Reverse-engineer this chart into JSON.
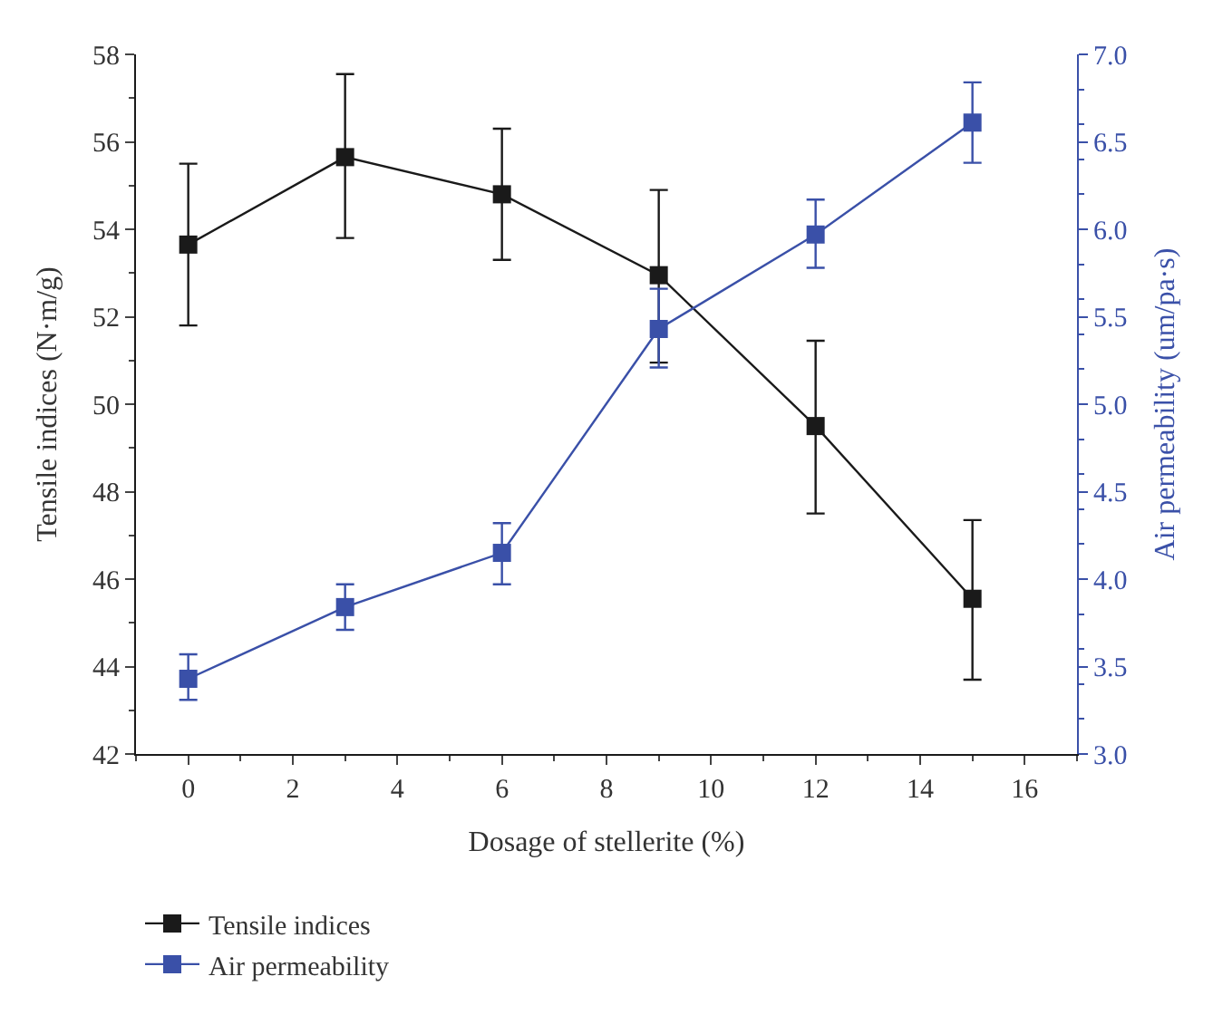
{
  "chart_data": {
    "type": "line",
    "xlabel": "Dosage of stellerite (%)",
    "ylabel": "Tensile indices (N·m/g)",
    "y2label": "Air permeability (um/pa·s)",
    "x": [
      0,
      3,
      6,
      9,
      12,
      15
    ],
    "series": [
      {
        "name": "Tensile indices",
        "color": "#1a1a1a",
        "values": [
          53.65,
          55.65,
          54.8,
          52.95,
          49.5,
          45.55
        ],
        "errors": [
          [
            51.8,
            55.5
          ],
          [
            53.8,
            57.55
          ],
          [
            53.3,
            56.3
          ],
          [
            50.95,
            54.9
          ],
          [
            47.5,
            51.45
          ],
          [
            43.7,
            47.35
          ]
        ]
      },
      {
        "name": "Air permeability",
        "color": "#3a50a8",
        "axis": "y2",
        "values": [
          3.43,
          3.84,
          4.15,
          5.43,
          5.97,
          6.61
        ],
        "errors": [
          [
            3.31,
            3.57
          ],
          [
            3.71,
            3.97
          ],
          [
            3.97,
            4.32
          ],
          [
            5.21,
            5.66
          ],
          [
            5.78,
            6.17
          ],
          [
            6.38,
            6.84
          ]
        ]
      }
    ],
    "xlim": [
      -1,
      17
    ],
    "xticks": [
      0,
      2,
      4,
      6,
      8,
      10,
      12,
      14,
      16
    ],
    "ylim": [
      42,
      58
    ],
    "yticks": [
      42,
      44,
      46,
      48,
      50,
      52,
      54,
      56,
      58
    ],
    "y2lim": [
      3.0,
      7.0
    ],
    "y2ticks": [
      {
        "value": 3.0,
        "label": "3.0"
      },
      {
        "value": 3.5,
        "label": "3.5"
      },
      {
        "value": 4.0,
        "label": "4.0"
      },
      {
        "value": 4.5,
        "label": "4.5"
      },
      {
        "value": 5.0,
        "label": "5.0"
      },
      {
        "value": 5.5,
        "label": "5.5"
      },
      {
        "value": 6.0,
        "label": "6.0"
      },
      {
        "value": 6.5,
        "label": "6.5"
      },
      {
        "value": 7.0,
        "label": "7.0"
      }
    ],
    "legend": "bottom left",
    "marker": "square",
    "line_style": "solid"
  }
}
